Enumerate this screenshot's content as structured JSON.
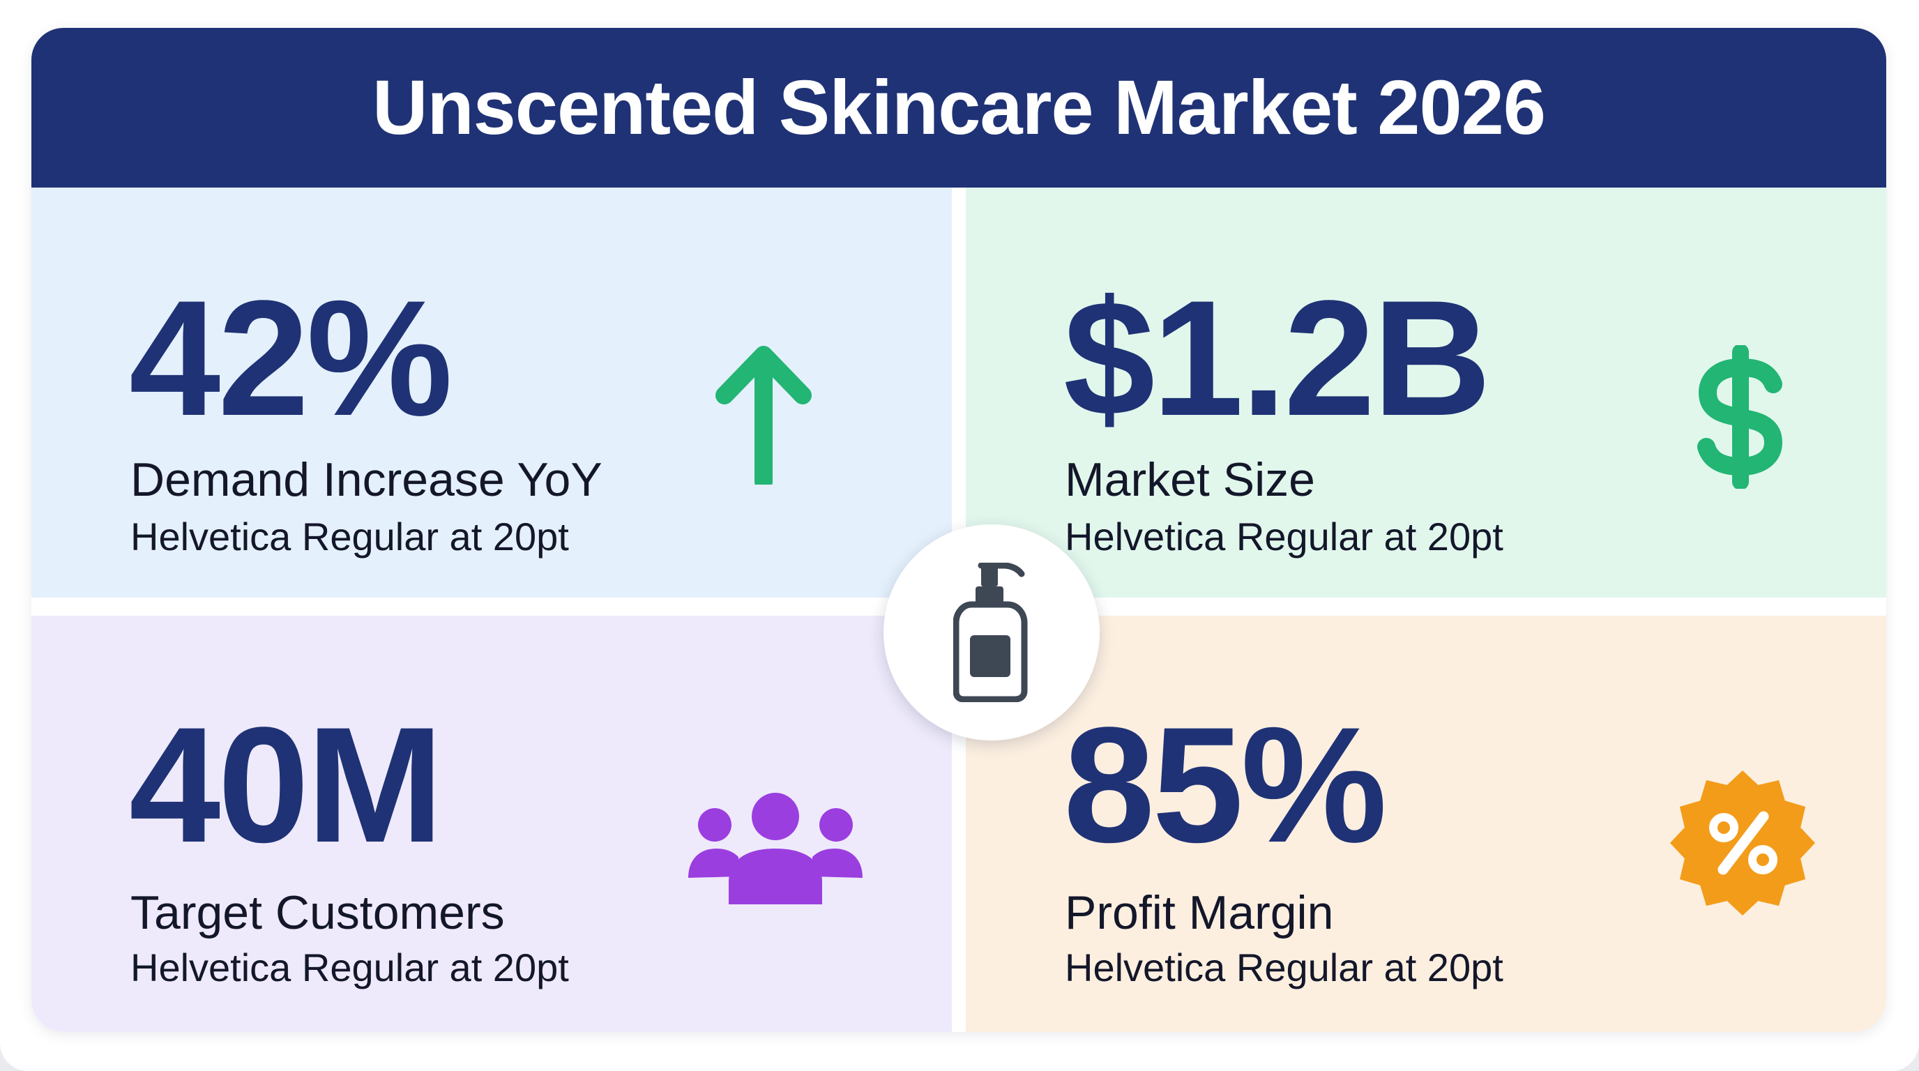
{
  "header": {
    "title": "Unscented Skincare Market 2026"
  },
  "metrics": [
    {
      "value": "42%",
      "label": "Demand Increase YoY",
      "note": "Helvetica Regular at 20pt",
      "icon": "arrow-up-icon",
      "icon_color": "#22b573"
    },
    {
      "value": "$1.2B",
      "label": "Market Size",
      "note": "Helvetica Regular at 20pt",
      "icon": "dollar-icon",
      "icon_color": "#22b573"
    },
    {
      "value": "40M",
      "label": "Target Customers",
      "note": "Helvetica Regular at 20pt",
      "icon": "people-group-icon",
      "icon_color": "#9b3ee0"
    },
    {
      "value": "85%",
      "label": "Profit Margin",
      "note": "Helvetica Regular at 20pt",
      "icon": "percent-badge-icon",
      "icon_color": "#f39c1a"
    }
  ],
  "center": {
    "icon": "lotion-pump-bottle-icon",
    "icon_color": "#3e4754"
  },
  "colors": {
    "header_bg": "#1f3275",
    "value_text": "#1f3275",
    "card_blue": "#e4f0fb",
    "card_green": "#e1f7ec",
    "card_purple": "#eeeafb",
    "card_peach": "#fcefe0"
  }
}
